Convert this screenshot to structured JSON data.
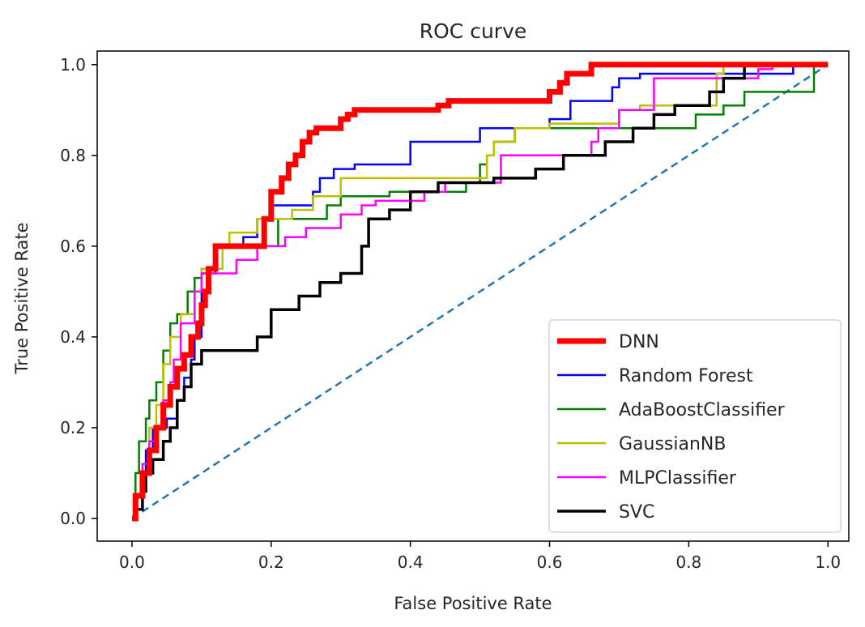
{
  "chart_data": {
    "type": "line",
    "title": "ROC curve",
    "xlabel": "False Positive Rate",
    "ylabel": "True Positive Rate",
    "xlim": [
      -0.05,
      1.03
    ],
    "ylim": [
      -0.05,
      1.03
    ],
    "xticks": [
      0.0,
      0.2,
      0.4,
      0.6,
      0.8,
      1.0
    ],
    "yticks": [
      0.0,
      0.2,
      0.4,
      0.6,
      0.8,
      1.0
    ],
    "xtick_labels": [
      "0.0",
      "0.2",
      "0.4",
      "0.6",
      "0.8",
      "1.0"
    ],
    "ytick_labels": [
      "0.0",
      "0.2",
      "0.4",
      "0.6",
      "0.8",
      "1.0"
    ],
    "legend_position": "lower-right",
    "baseline": {
      "x": [
        0,
        1
      ],
      "y": [
        0,
        1
      ],
      "color": "#1f77b4",
      "style": "dashed"
    },
    "series": [
      {
        "name": "DNN",
        "color": "#ff0000",
        "width": 7,
        "x": [
          0,
          0.005,
          0.005,
          0.015,
          0.015,
          0.025,
          0.025,
          0.035,
          0.035,
          0.045,
          0.045,
          0.055,
          0.055,
          0.065,
          0.065,
          0.075,
          0.075,
          0.085,
          0.085,
          0.095,
          0.095,
          0.1,
          0.1,
          0.105,
          0.105,
          0.11,
          0.11,
          0.12,
          0.12,
          0.19,
          0.19,
          0.2,
          0.2,
          0.215,
          0.215,
          0.225,
          0.225,
          0.235,
          0.235,
          0.245,
          0.245,
          0.255,
          0.255,
          0.265,
          0.265,
          0.3,
          0.3,
          0.31,
          0.31,
          0.32,
          0.32,
          0.44,
          0.44,
          0.455,
          0.455,
          0.6,
          0.6,
          0.615,
          0.615,
          0.625,
          0.625,
          0.66,
          0.66,
          1.0
        ],
        "y": [
          0,
          0,
          0.05,
          0.05,
          0.1,
          0.1,
          0.15,
          0.15,
          0.2,
          0.2,
          0.25,
          0.25,
          0.29,
          0.29,
          0.33,
          0.33,
          0.36,
          0.36,
          0.4,
          0.4,
          0.43,
          0.43,
          0.47,
          0.47,
          0.5,
          0.5,
          0.55,
          0.55,
          0.6,
          0.6,
          0.66,
          0.66,
          0.72,
          0.72,
          0.75,
          0.75,
          0.78,
          0.78,
          0.8,
          0.8,
          0.83,
          0.83,
          0.85,
          0.85,
          0.86,
          0.86,
          0.88,
          0.88,
          0.89,
          0.89,
          0.9,
          0.9,
          0.91,
          0.91,
          0.92,
          0.92,
          0.94,
          0.94,
          0.96,
          0.96,
          0.98,
          0.98,
          1.0,
          1.0
        ]
      },
      {
        "name": "Random Forest",
        "color": "#0000ff",
        "width": 2.5,
        "x": [
          0,
          0.005,
          0.005,
          0.015,
          0.015,
          0.02,
          0.02,
          0.03,
          0.03,
          0.05,
          0.05,
          0.065,
          0.065,
          0.075,
          0.075,
          0.085,
          0.085,
          0.09,
          0.09,
          0.1,
          0.1,
          0.12,
          0.12,
          0.16,
          0.16,
          0.18,
          0.18,
          0.2,
          0.2,
          0.26,
          0.26,
          0.27,
          0.27,
          0.29,
          0.29,
          0.32,
          0.32,
          0.4,
          0.4,
          0.5,
          0.5,
          0.6,
          0.6,
          0.63,
          0.63,
          0.69,
          0.69,
          0.7,
          0.7,
          0.73,
          0.73,
          0.95,
          0.95,
          1.0
        ],
        "y": [
          0,
          0,
          0.05,
          0.05,
          0.1,
          0.1,
          0.15,
          0.15,
          0.2,
          0.2,
          0.22,
          0.22,
          0.26,
          0.26,
          0.31,
          0.31,
          0.35,
          0.35,
          0.4,
          0.4,
          0.54,
          0.54,
          0.6,
          0.6,
          0.62,
          0.62,
          0.66,
          0.66,
          0.69,
          0.69,
          0.72,
          0.72,
          0.75,
          0.75,
          0.77,
          0.77,
          0.78,
          0.78,
          0.83,
          0.83,
          0.86,
          0.86,
          0.88,
          0.88,
          0.92,
          0.92,
          0.95,
          0.95,
          0.97,
          0.97,
          0.98,
          0.98,
          1.0,
          1.0
        ]
      },
      {
        "name": "AdaBoostClassifier",
        "color": "#008000",
        "width": 2.5,
        "x": [
          0,
          0.005,
          0.005,
          0.01,
          0.01,
          0.02,
          0.02,
          0.025,
          0.025,
          0.035,
          0.035,
          0.045,
          0.045,
          0.055,
          0.055,
          0.065,
          0.065,
          0.08,
          0.08,
          0.09,
          0.09,
          0.1,
          0.1,
          0.12,
          0.12,
          0.21,
          0.21,
          0.28,
          0.28,
          0.3,
          0.3,
          0.37,
          0.37,
          0.48,
          0.48,
          0.5,
          0.5,
          0.51,
          0.51,
          0.52,
          0.52,
          0.55,
          0.55,
          0.81,
          0.81,
          0.85,
          0.85,
          0.88,
          0.88,
          0.92,
          0.92,
          0.98,
          0.98,
          1.0
        ],
        "y": [
          0,
          0,
          0.1,
          0.1,
          0.17,
          0.17,
          0.22,
          0.22,
          0.26,
          0.26,
          0.3,
          0.3,
          0.37,
          0.37,
          0.43,
          0.43,
          0.45,
          0.45,
          0.5,
          0.5,
          0.53,
          0.53,
          0.55,
          0.55,
          0.6,
          0.6,
          0.66,
          0.66,
          0.69,
          0.69,
          0.71,
          0.71,
          0.72,
          0.72,
          0.74,
          0.74,
          0.78,
          0.78,
          0.8,
          0.8,
          0.83,
          0.83,
          0.86,
          0.86,
          0.89,
          0.89,
          0.91,
          0.91,
          0.94,
          0.94,
          0.94,
          0.94,
          1.0,
          1.0
        ]
      },
      {
        "name": "GaussianNB",
        "color": "#bfbf00",
        "width": 2.5,
        "x": [
          0,
          0.005,
          0.005,
          0.015,
          0.015,
          0.025,
          0.025,
          0.035,
          0.035,
          0.045,
          0.045,
          0.055,
          0.055,
          0.07,
          0.07,
          0.09,
          0.09,
          0.1,
          0.1,
          0.13,
          0.13,
          0.14,
          0.14,
          0.18,
          0.18,
          0.23,
          0.23,
          0.26,
          0.26,
          0.3,
          0.3,
          0.51,
          0.51,
          0.52,
          0.52,
          0.55,
          0.55,
          0.6,
          0.6,
          0.7,
          0.7,
          0.73,
          0.73,
          0.84,
          0.84,
          0.85,
          0.85,
          1.0
        ],
        "y": [
          0,
          0,
          0.05,
          0.05,
          0.1,
          0.1,
          0.2,
          0.2,
          0.25,
          0.25,
          0.34,
          0.34,
          0.4,
          0.4,
          0.45,
          0.45,
          0.5,
          0.5,
          0.55,
          0.55,
          0.6,
          0.6,
          0.63,
          0.63,
          0.66,
          0.66,
          0.68,
          0.68,
          0.71,
          0.71,
          0.75,
          0.75,
          0.8,
          0.8,
          0.83,
          0.83,
          0.86,
          0.86,
          0.87,
          0.87,
          0.9,
          0.9,
          0.91,
          0.91,
          0.98,
          0.98,
          1.0,
          1.0
        ]
      },
      {
        "name": "MLPClassifier",
        "color": "#ff00ff",
        "width": 2.5,
        "x": [
          0,
          0.005,
          0.005,
          0.015,
          0.015,
          0.025,
          0.025,
          0.035,
          0.035,
          0.045,
          0.045,
          0.055,
          0.055,
          0.06,
          0.06,
          0.07,
          0.07,
          0.09,
          0.09,
          0.1,
          0.1,
          0.15,
          0.15,
          0.18,
          0.18,
          0.22,
          0.22,
          0.25,
          0.25,
          0.3,
          0.3,
          0.33,
          0.33,
          0.35,
          0.35,
          0.42,
          0.42,
          0.45,
          0.45,
          0.53,
          0.53,
          0.66,
          0.66,
          0.67,
          0.67,
          0.7,
          0.7,
          0.75,
          0.75,
          0.9,
          0.9,
          0.92,
          0.92,
          1.0
        ],
        "y": [
          0,
          0,
          0.05,
          0.05,
          0.12,
          0.12,
          0.17,
          0.17,
          0.2,
          0.2,
          0.26,
          0.26,
          0.3,
          0.3,
          0.35,
          0.35,
          0.43,
          0.43,
          0.5,
          0.5,
          0.54,
          0.54,
          0.57,
          0.57,
          0.6,
          0.6,
          0.62,
          0.62,
          0.64,
          0.64,
          0.67,
          0.67,
          0.69,
          0.69,
          0.7,
          0.7,
          0.72,
          0.72,
          0.74,
          0.74,
          0.8,
          0.8,
          0.83,
          0.83,
          0.86,
          0.86,
          0.9,
          0.9,
          0.97,
          0.97,
          0.99,
          0.99,
          1.0,
          1.0
        ]
      },
      {
        "name": "SVC",
        "color": "#000000",
        "width": 3.5,
        "x": [
          0,
          0.005,
          0.005,
          0.015,
          0.015,
          0.02,
          0.02,
          0.03,
          0.03,
          0.045,
          0.045,
          0.055,
          0.055,
          0.065,
          0.065,
          0.075,
          0.075,
          0.085,
          0.085,
          0.1,
          0.1,
          0.18,
          0.18,
          0.2,
          0.2,
          0.24,
          0.24,
          0.27,
          0.27,
          0.3,
          0.3,
          0.33,
          0.33,
          0.34,
          0.34,
          0.37,
          0.37,
          0.4,
          0.4,
          0.44,
          0.44,
          0.5,
          0.5,
          0.52,
          0.52,
          0.58,
          0.58,
          0.62,
          0.62,
          0.68,
          0.68,
          0.72,
          0.72,
          0.75,
          0.75,
          0.78,
          0.78,
          0.83,
          0.83,
          0.85,
          0.85,
          0.88,
          0.88,
          1.0
        ],
        "y": [
          0,
          0,
          0.02,
          0.02,
          0.06,
          0.06,
          0.1,
          0.1,
          0.13,
          0.13,
          0.17,
          0.17,
          0.2,
          0.2,
          0.26,
          0.26,
          0.29,
          0.29,
          0.34,
          0.34,
          0.37,
          0.37,
          0.4,
          0.4,
          0.46,
          0.46,
          0.49,
          0.49,
          0.52,
          0.52,
          0.54,
          0.54,
          0.6,
          0.6,
          0.66,
          0.66,
          0.68,
          0.68,
          0.72,
          0.72,
          0.74,
          0.74,
          0.74,
          0.74,
          0.75,
          0.75,
          0.77,
          0.77,
          0.8,
          0.8,
          0.83,
          0.83,
          0.86,
          0.86,
          0.89,
          0.89,
          0.91,
          0.91,
          0.94,
          0.94,
          0.97,
          0.97,
          1.0,
          1.0
        ]
      }
    ]
  }
}
